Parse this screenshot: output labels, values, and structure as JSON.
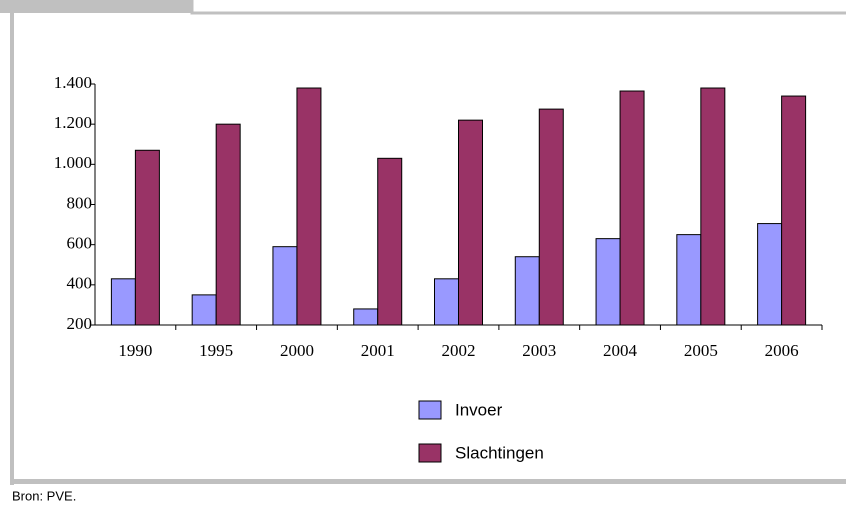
{
  "chart_data": {
    "type": "bar",
    "categories": [
      "1990",
      "1995",
      "2000",
      "2001",
      "2002",
      "2003",
      "2004",
      "2005",
      "2006"
    ],
    "series": [
      {
        "name": "Invoer",
        "color": "#9999ff",
        "values": [
          430,
          350,
          590,
          280,
          430,
          540,
          630,
          650,
          705
        ]
      },
      {
        "name": "Slachtingen",
        "color": "#993366",
        "values": [
          1070,
          1200,
          1380,
          1030,
          1220,
          1275,
          1365,
          1380,
          1340
        ]
      }
    ],
    "ylim": [
      200,
      1400
    ],
    "yticks": [
      200,
      400,
      600,
      800,
      {
        "value": 1000,
        "label": "1.000"
      },
      {
        "value": 1200,
        "label": "1.200"
      },
      {
        "value": 1400,
        "label": "1.400"
      }
    ],
    "grid": false,
    "source": "Bron: PVE."
  }
}
